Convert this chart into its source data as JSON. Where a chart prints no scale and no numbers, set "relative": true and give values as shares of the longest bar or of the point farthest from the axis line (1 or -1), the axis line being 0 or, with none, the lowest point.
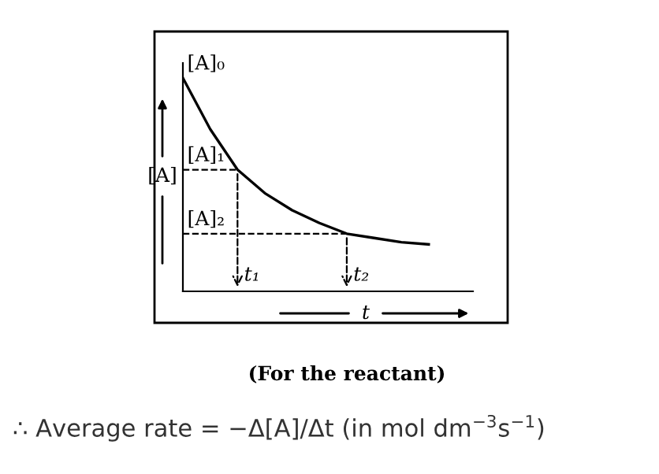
{
  "chart_data": {
    "type": "line",
    "relative": true,
    "color": "#000000",
    "categories": [
      null,
      null,
      null,
      null,
      null,
      null,
      null,
      null,
      null,
      null
    ],
    "values": [
      1,
      0.76,
      0.57,
      0.46,
      0.38,
      0.32,
      0.27,
      0.25,
      0.23,
      0.22
    ],
    "ylabel": "[A]",
    "xlabel": "t",
    "subtitle": "(For the reactant)",
    "ref_lines": [
      {
        "axis": "y",
        "value": 0.57,
        "label": "[A]₁",
        "line_style": "dashed"
      },
      {
        "axis": "y",
        "value": 0.27,
        "label": "[A]₂",
        "line_style": "dashed"
      }
    ],
    "annotations": [
      "[A]₀",
      "t₁",
      "t₂",
      "∴ Average rate = −Δ[A]/Δt (in mol dm$^{−3}$s$^{−1}$)"
    ],
    "legend": false,
    "marker": "none",
    "line_style": "solid"
  }
}
